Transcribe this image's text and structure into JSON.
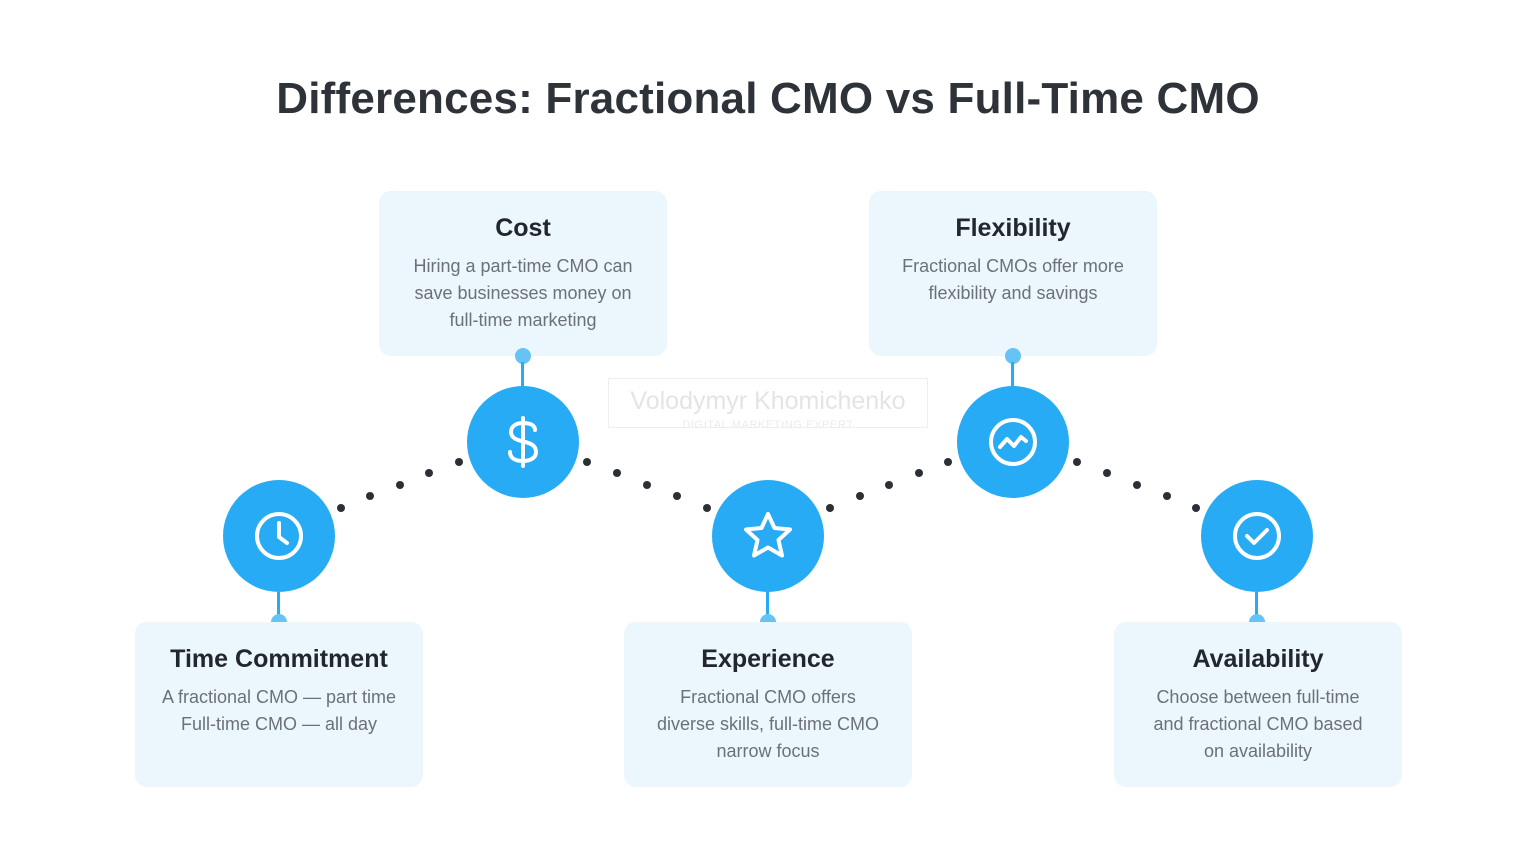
{
  "title": "Differences: Fractional CMO vs Full-Time CMO",
  "accent_color": "#27abf4",
  "card_color": "#ecf6fd",
  "watermark": {
    "name": "Volodymyr Khomichenko",
    "subtitle": "DIGITAL MARKETING EXPERT"
  },
  "items": [
    {
      "title": "Time Commitment",
      "text": "A fractional CMO — part time\nFull-time CMO — all day",
      "icon": "clock-icon"
    },
    {
      "title": "Cost",
      "text": "Hiring a part-time CMO can\nsave businesses money on\nfull-time marketing",
      "icon": "dollar-icon"
    },
    {
      "title": "Experience",
      "text": "Fractional CMO offers\ndiverse skills, full-time CMO\nnarrow focus",
      "icon": "star-icon"
    },
    {
      "title": "Flexibility",
      "text": "Fractional CMOs offer more\nflexibility and savings",
      "icon": "trend-icon"
    },
    {
      "title": "Availability",
      "text": "Choose between full-time\nand fractional CMO based\non availability",
      "icon": "check-circle-icon"
    }
  ]
}
